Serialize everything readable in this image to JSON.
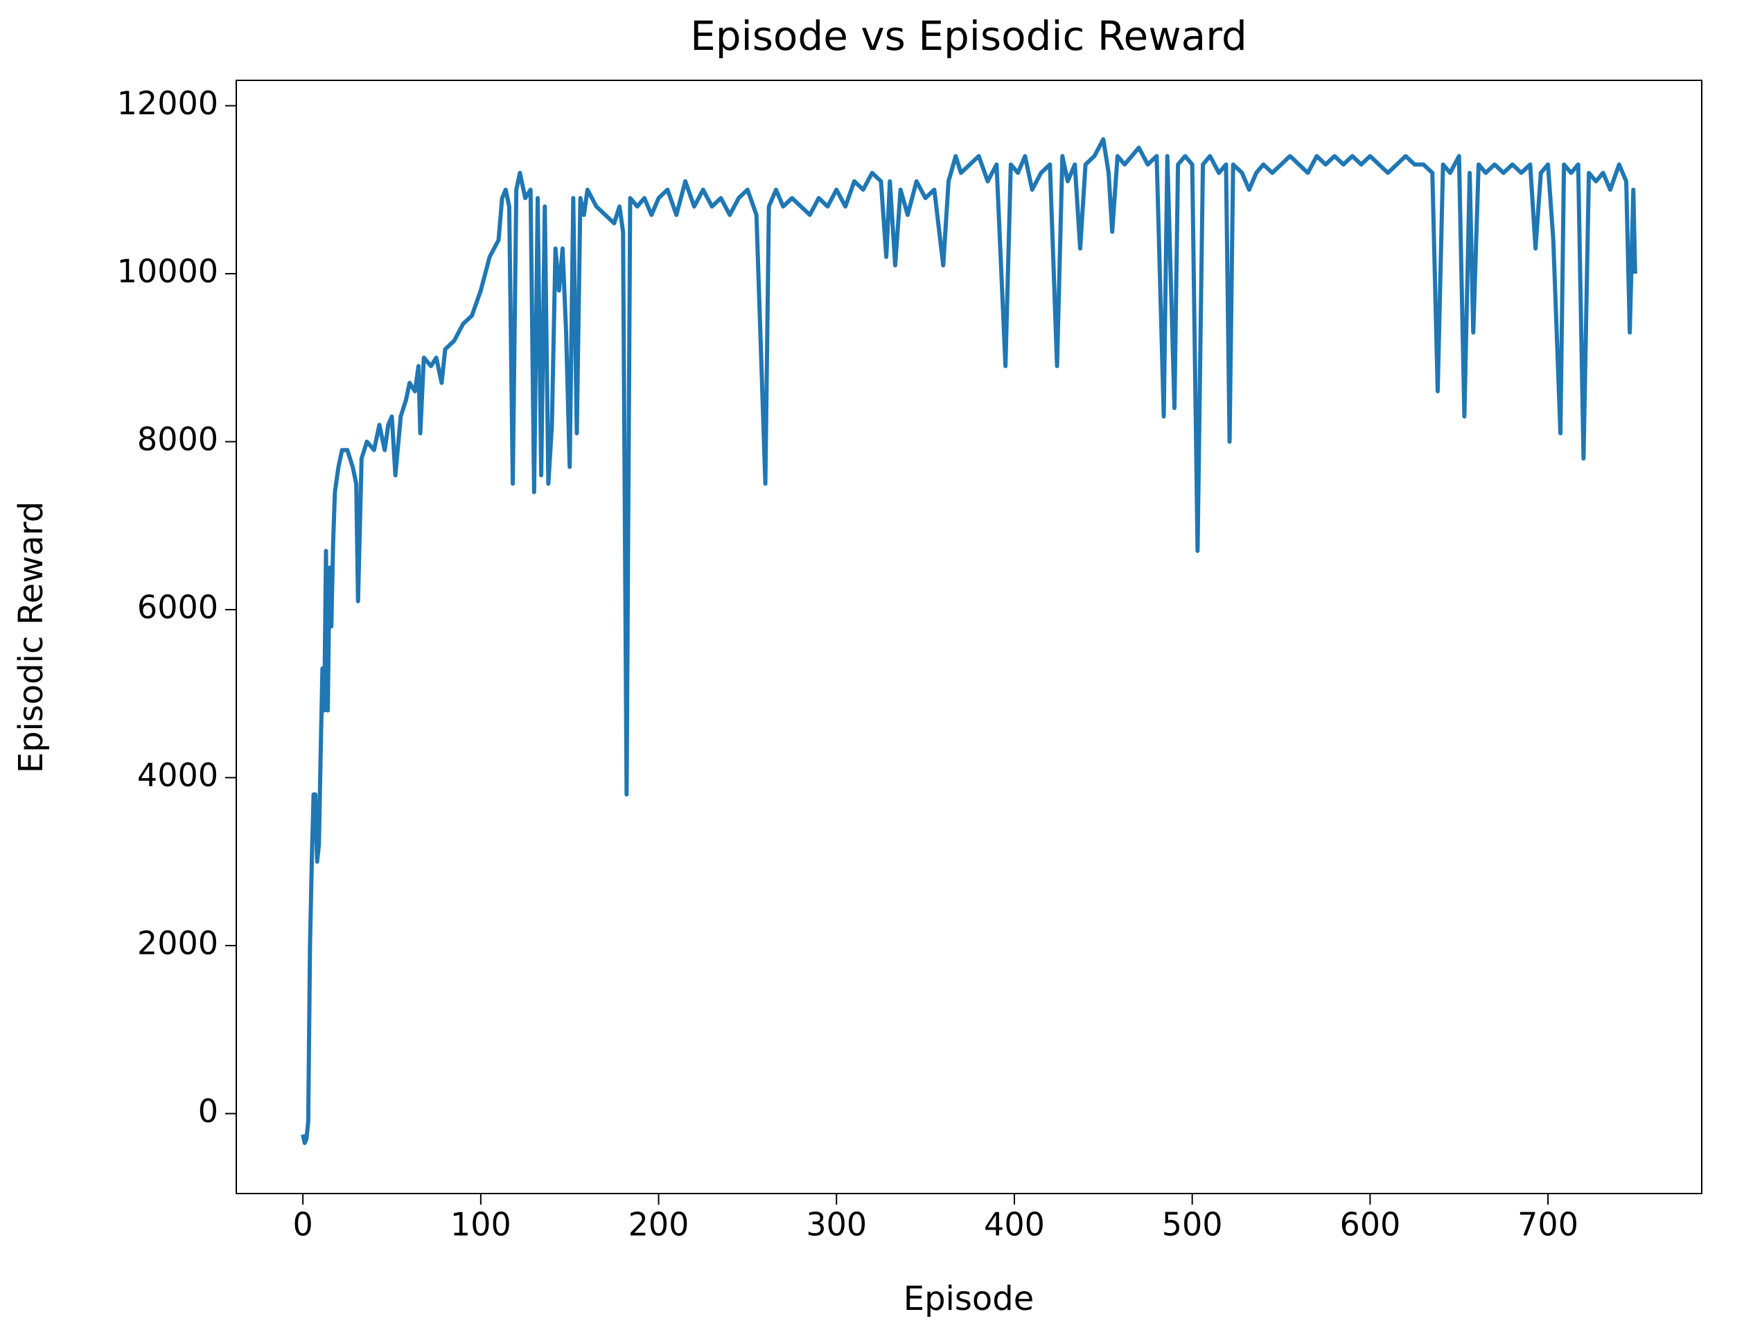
{
  "chart_data": {
    "type": "line",
    "title": "Episode vs Episodic Reward",
    "xlabel": "Episode",
    "ylabel": "Episodic Reward",
    "xlim": [
      -37.45,
      786.45
    ],
    "ylim": [
      -952,
      12302
    ],
    "xticks": [
      0,
      100,
      200,
      300,
      400,
      500,
      600,
      700
    ],
    "yticks": [
      0,
      2000,
      4000,
      6000,
      8000,
      10000,
      12000
    ],
    "grid": false,
    "series": [
      {
        "name": "Episodic Reward",
        "color": "#1f77b4",
        "x": [
          0,
          1,
          2,
          3,
          4,
          5,
          6,
          7,
          8,
          9,
          10,
          11,
          12,
          13,
          14,
          15,
          16,
          17,
          18,
          20,
          22,
          25,
          28,
          30,
          31,
          33,
          36,
          40,
          43,
          46,
          48,
          50,
          52,
          55,
          58,
          60,
          63,
          65,
          66,
          68,
          72,
          75,
          78,
          80,
          85,
          90,
          95,
          100,
          105,
          110,
          112,
          114,
          116,
          118,
          120,
          122,
          125,
          128,
          130,
          132,
          134,
          136,
          138,
          140,
          142,
          144,
          146,
          148,
          150,
          152,
          154,
          156,
          158,
          160,
          165,
          170,
          175,
          178,
          180,
          182,
          184,
          188,
          192,
          196,
          200,
          205,
          210,
          215,
          220,
          225,
          230,
          235,
          240,
          245,
          250,
          255,
          260,
          262,
          266,
          270,
          275,
          280,
          285,
          290,
          295,
          300,
          305,
          310,
          315,
          320,
          325,
          328,
          330,
          333,
          336,
          340,
          345,
          350,
          355,
          360,
          363,
          367,
          370,
          375,
          380,
          385,
          390,
          395,
          398,
          402,
          406,
          410,
          415,
          420,
          424,
          427,
          430,
          434,
          437,
          440,
          445,
          450,
          453,
          455,
          458,
          462,
          466,
          470,
          475,
          480,
          484,
          486,
          490,
          492,
          496,
          500,
          503,
          506,
          510,
          515,
          519,
          521,
          523,
          528,
          532,
          536,
          540,
          545,
          550,
          555,
          560,
          565,
          570,
          575,
          580,
          585,
          590,
          595,
          600,
          605,
          610,
          615,
          620,
          625,
          630,
          635,
          638,
          641,
          645,
          650,
          653,
          656,
          658,
          661,
          665,
          670,
          675,
          680,
          685,
          690,
          693,
          696,
          700,
          703,
          707,
          709,
          713,
          717,
          720,
          723,
          727,
          731,
          735,
          740,
          744,
          746,
          748,
          749
        ],
        "values": [
          -250,
          -350,
          -300,
          -100,
          2000,
          3000,
          3800,
          3800,
          3000,
          3200,
          4300,
          5300,
          4800,
          6700,
          4800,
          6500,
          5800,
          6800,
          7400,
          7700,
          7900,
          7900,
          7700,
          7500,
          6100,
          7800,
          8000,
          7900,
          8200,
          7900,
          8200,
          8300,
          7600,
          8300,
          8500,
          8700,
          8600,
          8900,
          8100,
          9000,
          8900,
          9000,
          8700,
          9100,
          9200,
          9400,
          9500,
          9800,
          10200,
          10400,
          10900,
          11000,
          10800,
          7500,
          11000,
          11200,
          10900,
          11000,
          7400,
          10900,
          7600,
          10800,
          7500,
          8200,
          10300,
          9800,
          10300,
          9300,
          7700,
          10900,
          8100,
          10900,
          10700,
          11000,
          10800,
          10700,
          10600,
          10800,
          10500,
          3800,
          10900,
          10800,
          10900,
          10700,
          10900,
          11000,
          10700,
          11100,
          10800,
          11000,
          10800,
          10900,
          10700,
          10900,
          11000,
          10700,
          7500,
          10800,
          11000,
          10800,
          10900,
          10800,
          10700,
          10900,
          10800,
          11000,
          10800,
          11100,
          11000,
          11200,
          11100,
          10200,
          11100,
          10100,
          11000,
          10700,
          11100,
          10900,
          11000,
          10100,
          11100,
          11400,
          11200,
          11300,
          11400,
          11100,
          11300,
          8900,
          11300,
          11200,
          11400,
          11000,
          11200,
          11300,
          8900,
          11400,
          11100,
          11300,
          10300,
          11300,
          11400,
          11600,
          11200,
          10500,
          11400,
          11300,
          11400,
          11500,
          11300,
          11400,
          8300,
          11400,
          8400,
          11300,
          11400,
          11300,
          6700,
          11300,
          11400,
          11200,
          11300,
          8000,
          11300,
          11200,
          11000,
          11200,
          11300,
          11200,
          11300,
          11400,
          11300,
          11200,
          11400,
          11300,
          11400,
          11300,
          11400,
          11300,
          11400,
          11300,
          11200,
          11300,
          11400,
          11300,
          11300,
          11200,
          8600,
          11300,
          11200,
          11400,
          8300,
          11200,
          9300,
          11300,
          11200,
          11300,
          11200,
          11300,
          11200,
          11300,
          10300,
          11200,
          11300,
          10400,
          8100,
          11300,
          11200,
          11300,
          7800,
          11200,
          11100,
          11200,
          11000,
          11300,
          11100,
          9300,
          11000,
          10000
        ]
      }
    ]
  }
}
